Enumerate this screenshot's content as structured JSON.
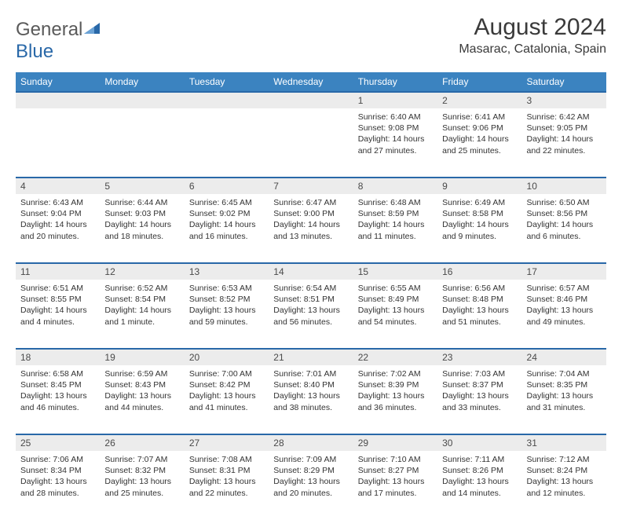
{
  "brand": {
    "part1": "General",
    "part2": "Blue"
  },
  "title": "August 2024",
  "location": "Masarac, Catalonia, Spain",
  "colors": {
    "header_bg": "#3b83c0",
    "accent_border": "#2968a8",
    "daynum_bg": "#ececec",
    "text": "#333333"
  },
  "dayHeaders": [
    "Sunday",
    "Monday",
    "Tuesday",
    "Wednesday",
    "Thursday",
    "Friday",
    "Saturday"
  ],
  "weeks": [
    [
      null,
      null,
      null,
      null,
      {
        "n": "1",
        "sunrise": "6:40 AM",
        "sunset": "9:08 PM",
        "daylight": "14 hours and 27 minutes."
      },
      {
        "n": "2",
        "sunrise": "6:41 AM",
        "sunset": "9:06 PM",
        "daylight": "14 hours and 25 minutes."
      },
      {
        "n": "3",
        "sunrise": "6:42 AM",
        "sunset": "9:05 PM",
        "daylight": "14 hours and 22 minutes."
      }
    ],
    [
      {
        "n": "4",
        "sunrise": "6:43 AM",
        "sunset": "9:04 PM",
        "daylight": "14 hours and 20 minutes."
      },
      {
        "n": "5",
        "sunrise": "6:44 AM",
        "sunset": "9:03 PM",
        "daylight": "14 hours and 18 minutes."
      },
      {
        "n": "6",
        "sunrise": "6:45 AM",
        "sunset": "9:02 PM",
        "daylight": "14 hours and 16 minutes."
      },
      {
        "n": "7",
        "sunrise": "6:47 AM",
        "sunset": "9:00 PM",
        "daylight": "14 hours and 13 minutes."
      },
      {
        "n": "8",
        "sunrise": "6:48 AM",
        "sunset": "8:59 PM",
        "daylight": "14 hours and 11 minutes."
      },
      {
        "n": "9",
        "sunrise": "6:49 AM",
        "sunset": "8:58 PM",
        "daylight": "14 hours and 9 minutes."
      },
      {
        "n": "10",
        "sunrise": "6:50 AM",
        "sunset": "8:56 PM",
        "daylight": "14 hours and 6 minutes."
      }
    ],
    [
      {
        "n": "11",
        "sunrise": "6:51 AM",
        "sunset": "8:55 PM",
        "daylight": "14 hours and 4 minutes."
      },
      {
        "n": "12",
        "sunrise": "6:52 AM",
        "sunset": "8:54 PM",
        "daylight": "14 hours and 1 minute."
      },
      {
        "n": "13",
        "sunrise": "6:53 AM",
        "sunset": "8:52 PM",
        "daylight": "13 hours and 59 minutes."
      },
      {
        "n": "14",
        "sunrise": "6:54 AM",
        "sunset": "8:51 PM",
        "daylight": "13 hours and 56 minutes."
      },
      {
        "n": "15",
        "sunrise": "6:55 AM",
        "sunset": "8:49 PM",
        "daylight": "13 hours and 54 minutes."
      },
      {
        "n": "16",
        "sunrise": "6:56 AM",
        "sunset": "8:48 PM",
        "daylight": "13 hours and 51 minutes."
      },
      {
        "n": "17",
        "sunrise": "6:57 AM",
        "sunset": "8:46 PM",
        "daylight": "13 hours and 49 minutes."
      }
    ],
    [
      {
        "n": "18",
        "sunrise": "6:58 AM",
        "sunset": "8:45 PM",
        "daylight": "13 hours and 46 minutes."
      },
      {
        "n": "19",
        "sunrise": "6:59 AM",
        "sunset": "8:43 PM",
        "daylight": "13 hours and 44 minutes."
      },
      {
        "n": "20",
        "sunrise": "7:00 AM",
        "sunset": "8:42 PM",
        "daylight": "13 hours and 41 minutes."
      },
      {
        "n": "21",
        "sunrise": "7:01 AM",
        "sunset": "8:40 PM",
        "daylight": "13 hours and 38 minutes."
      },
      {
        "n": "22",
        "sunrise": "7:02 AM",
        "sunset": "8:39 PM",
        "daylight": "13 hours and 36 minutes."
      },
      {
        "n": "23",
        "sunrise": "7:03 AM",
        "sunset": "8:37 PM",
        "daylight": "13 hours and 33 minutes."
      },
      {
        "n": "24",
        "sunrise": "7:04 AM",
        "sunset": "8:35 PM",
        "daylight": "13 hours and 31 minutes."
      }
    ],
    [
      {
        "n": "25",
        "sunrise": "7:06 AM",
        "sunset": "8:34 PM",
        "daylight": "13 hours and 28 minutes."
      },
      {
        "n": "26",
        "sunrise": "7:07 AM",
        "sunset": "8:32 PM",
        "daylight": "13 hours and 25 minutes."
      },
      {
        "n": "27",
        "sunrise": "7:08 AM",
        "sunset": "8:31 PM",
        "daylight": "13 hours and 22 minutes."
      },
      {
        "n": "28",
        "sunrise": "7:09 AM",
        "sunset": "8:29 PM",
        "daylight": "13 hours and 20 minutes."
      },
      {
        "n": "29",
        "sunrise": "7:10 AM",
        "sunset": "8:27 PM",
        "daylight": "13 hours and 17 minutes."
      },
      {
        "n": "30",
        "sunrise": "7:11 AM",
        "sunset": "8:26 PM",
        "daylight": "13 hours and 14 minutes."
      },
      {
        "n": "31",
        "sunrise": "7:12 AM",
        "sunset": "8:24 PM",
        "daylight": "13 hours and 12 minutes."
      }
    ]
  ],
  "labels": {
    "sunrise": "Sunrise: ",
    "sunset": "Sunset: ",
    "daylight": "Daylight: "
  }
}
